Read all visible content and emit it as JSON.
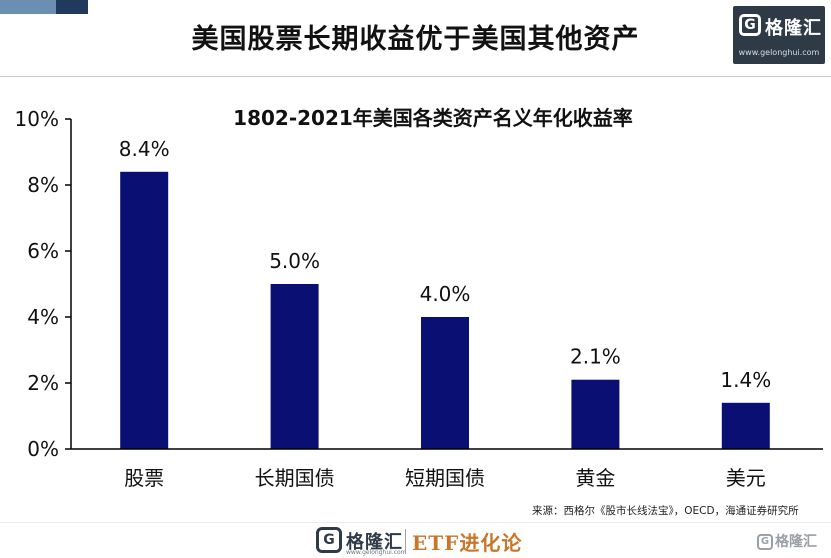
{
  "headline": "美国股票长期收益优于美国其他资产",
  "logo": {
    "mark": "G",
    "name": "格隆汇",
    "url": "www.gelonghui.com"
  },
  "source": "来源：西格尔《股市长线法宝》，OECD，海通证券研究所",
  "footer": {
    "logo_mark": "G",
    "logo_name": "格隆汇",
    "logo_url": "www.gelonghui.com",
    "brand": "ETF进化论"
  },
  "watermark": {
    "mark": "G",
    "name": "格隆汇"
  },
  "colors": {
    "bar": "#0a0f73",
    "axis": "#000000",
    "text": "#111111"
  },
  "chart_data": {
    "type": "bar",
    "title": "1802-2021年美国各类资产名义年化收益率",
    "xlabel": "",
    "ylabel": "",
    "categories": [
      "股票",
      "长期国债",
      "短期国债",
      "黄金",
      "美元"
    ],
    "values": [
      8.4,
      5.0,
      4.0,
      2.1,
      1.4
    ],
    "value_labels": [
      "8.4%",
      "5.0%",
      "4.0%",
      "2.1%",
      "1.4%"
    ],
    "ylim": [
      0,
      10
    ],
    "yticks": [
      0,
      2,
      4,
      6,
      8,
      10
    ],
    "ytick_labels": [
      "0%",
      "2%",
      "4%",
      "6%",
      "8%",
      "10%"
    ],
    "grid": false,
    "legend": "none"
  }
}
